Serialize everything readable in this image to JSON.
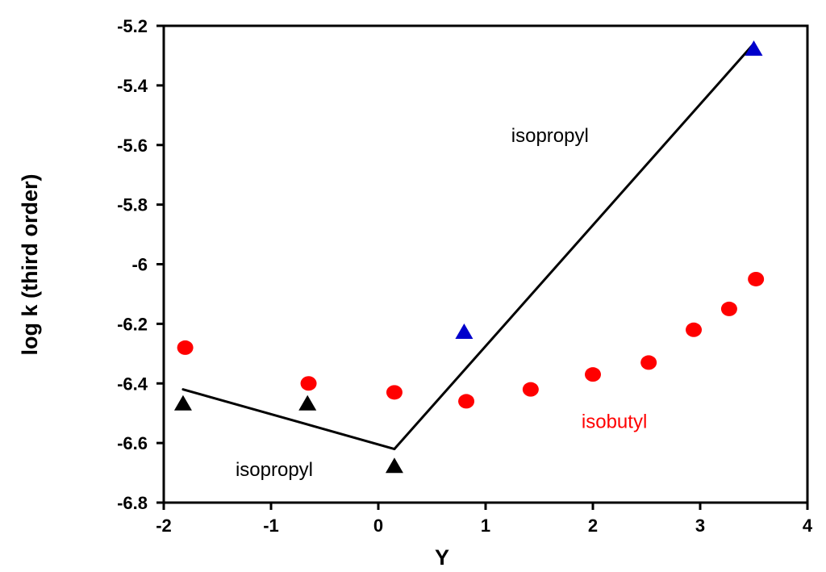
{
  "chart_data": {
    "type": "scatter",
    "xlabel": "Y",
    "ylabel": "log k (third order)",
    "xlim": [
      -2,
      4
    ],
    "ylim": [
      -6.8,
      -5.2
    ],
    "x_ticks": [
      -2,
      -1,
      0,
      1,
      2,
      3,
      4
    ],
    "y_ticks": [
      -5.2,
      -5.4,
      -5.6,
      -5.8,
      -6,
      -6.2,
      -6.4,
      -6.6,
      -6.8
    ],
    "grid": false,
    "series": [
      {
        "color": "#000000",
        "marker": "triangle",
        "points": [
          {
            "x": -1.82,
            "y": -6.47
          },
          {
            "x": -0.66,
            "y": -6.47
          },
          {
            "x": 0.15,
            "y": -6.68
          }
        ]
      },
      {
        "color": "#0000cc",
        "marker": "triangle",
        "points": [
          {
            "x": 0.8,
            "y": -6.23
          },
          {
            "x": 3.5,
            "y": -5.28
          }
        ]
      },
      {
        "color": "#ff0000",
        "marker": "circle",
        "points": [
          {
            "x": -1.8,
            "y": -6.28
          },
          {
            "x": -0.65,
            "y": -6.4
          },
          {
            "x": 0.15,
            "y": -6.43
          },
          {
            "x": 0.82,
            "y": -6.46
          },
          {
            "x": 1.42,
            "y": -6.42
          },
          {
            "x": 2.0,
            "y": -6.37
          },
          {
            "x": 2.52,
            "y": -6.33
          },
          {
            "x": 2.94,
            "y": -6.22
          },
          {
            "x": 3.27,
            "y": -6.15
          },
          {
            "x": 3.52,
            "y": -6.05
          }
        ]
      }
    ],
    "lines": [
      {
        "color": "#000000",
        "points": [
          {
            "x": -1.82,
            "y": -6.42
          },
          {
            "x": 0.15,
            "y": -6.62
          }
        ]
      },
      {
        "color": "#000000",
        "points": [
          {
            "x": 0.15,
            "y": -6.62
          },
          {
            "x": 3.5,
            "y": -5.26
          }
        ]
      }
    ],
    "annotations": [
      {
        "text": "isopropyl",
        "x": 1.6,
        "y": -5.59,
        "color": "#000000"
      },
      {
        "text": "isopropyl",
        "x": -0.97,
        "y": -6.71,
        "color": "#000000"
      },
      {
        "text": "isobutyl",
        "x": 2.2,
        "y": -6.55,
        "color": "#ff0000"
      }
    ]
  }
}
